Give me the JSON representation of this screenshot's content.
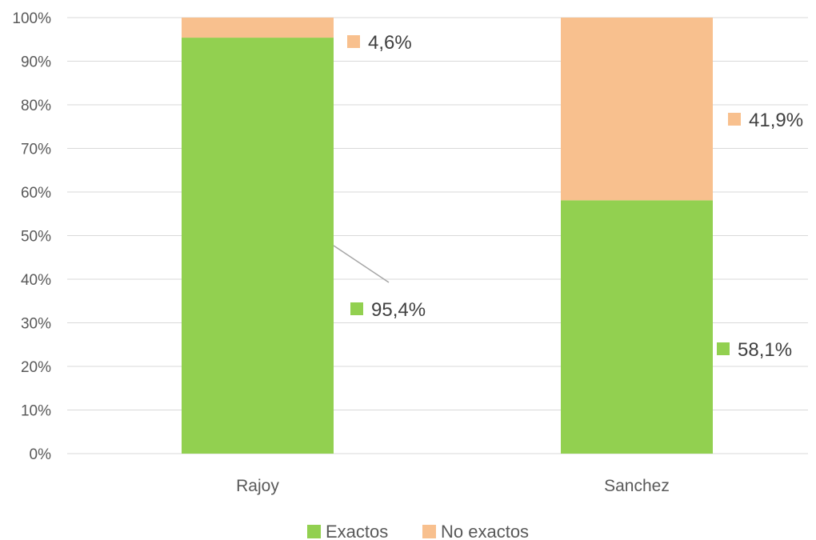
{
  "chart_data": {
    "type": "bar",
    "stacked": true,
    "categories": [
      "Rajoy",
      "Sanchez"
    ],
    "series": [
      {
        "name": "Exactos",
        "values": [
          95.4,
          58.1
        ],
        "labels": [
          "95,4%",
          "58,1%"
        ],
        "color": "#92D050"
      },
      {
        "name": "No exactos",
        "values": [
          4.6,
          41.9
        ],
        "labels": [
          "4,6%",
          "41,9%"
        ],
        "color": "#F8C08E"
      }
    ],
    "ylim": [
      0,
      100
    ],
    "yticks": [
      "0%",
      "10%",
      "20%",
      "30%",
      "40%",
      "50%",
      "60%",
      "70%",
      "80%",
      "90%",
      "100%"
    ],
    "grid": true,
    "legend_position": "bottom",
    "title": "",
    "xlabel": "",
    "ylabel": ""
  }
}
